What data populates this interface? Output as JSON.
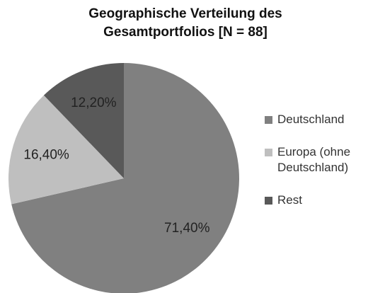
{
  "chart_data": {
    "type": "pie",
    "title": [
      "Geographische Verteilung des",
      "Gesamtportfolios [N = 88]"
    ],
    "categories": [
      "Deutschland",
      "Europa (ohne Deutschland)",
      "Rest"
    ],
    "values": [
      71.4,
      16.4,
      12.2
    ],
    "value_labels": [
      "71,40%",
      "16,40%",
      "12,20%"
    ],
    "colors": [
      "#808080",
      "#bfbfbf",
      "#595959"
    ],
    "legend": "right"
  }
}
